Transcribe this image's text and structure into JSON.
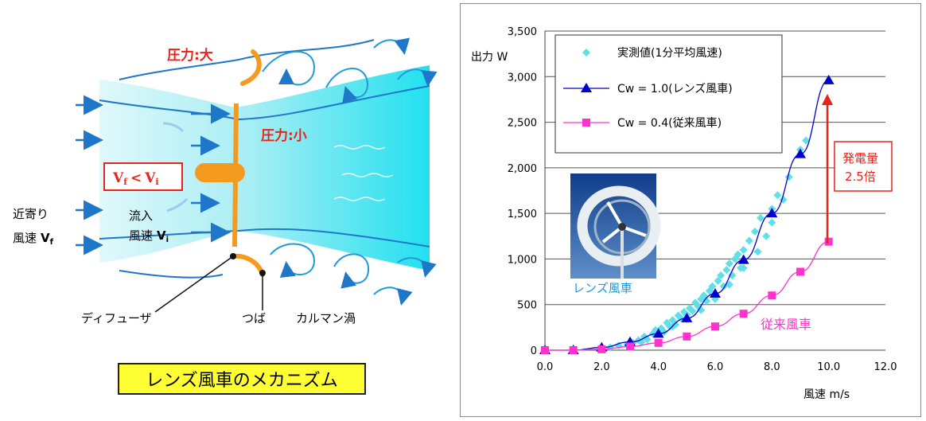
{
  "diagram": {
    "pressure_high": "圧力:大",
    "pressure_low": "圧力:小",
    "inequality_vf": "V",
    "inequality_vf_sub": "f",
    "inequality_lt": "<",
    "inequality_vi": "V",
    "inequality_vi_sub": "i",
    "approach_line1": "近寄り",
    "approach_line2": "風速",
    "approach_symbol": "V",
    "approach_sub": "f",
    "inflow_line1": "流入",
    "inflow_line2": "風速",
    "inflow_symbol": "V",
    "inflow_sub": "i",
    "diffuser_label": "ディフューザ",
    "brim_label": "つば",
    "vortex_label": "カルマン渦",
    "caption": "レンズ風車のメカニズム",
    "colors": {
      "flow_fill": "#33e5f0",
      "rotor": "#f39a1f",
      "arrow": "#1f77c9",
      "pressure_text": "#e8231a"
    }
  },
  "photo": {
    "label": "レンズ風車",
    "icon": "lens-wind-turbine-photo"
  },
  "annotations": {
    "gain_line1": "発電量",
    "gain_line2": "2.5倍",
    "conventional_label": "従来風車"
  },
  "chart_data": {
    "type": "scatter",
    "ylabel": "出力 W",
    "xlabel": "風速 m/s",
    "xlim": [
      0,
      12
    ],
    "ylim": [
      0,
      3500
    ],
    "x_ticks": [
      "0.0",
      "2.0",
      "4.0",
      "6.0",
      "8.0",
      "10.0",
      "12.0"
    ],
    "y_ticks": [
      "0",
      "500",
      "1,000",
      "1,500",
      "2,000",
      "2,500",
      "3,000",
      "3,500"
    ],
    "grid": "horizontal",
    "legend_position": "top-left",
    "series": [
      {
        "name": "実測値(1分平均風速)",
        "marker": "diamond",
        "color": "#5fe0e6",
        "points": [
          [
            2.3,
            30
          ],
          [
            2.6,
            50
          ],
          [
            2.9,
            60
          ],
          [
            3.1,
            80
          ],
          [
            3.3,
            110
          ],
          [
            3.5,
            150
          ],
          [
            3.6,
            120
          ],
          [
            3.8,
            180
          ],
          [
            3.9,
            220
          ],
          [
            4.1,
            240
          ],
          [
            4.2,
            200
          ],
          [
            4.3,
            300
          ],
          [
            4.4,
            260
          ],
          [
            4.5,
            330
          ],
          [
            4.6,
            280
          ],
          [
            4.7,
            380
          ],
          [
            4.8,
            350
          ],
          [
            4.9,
            420
          ],
          [
            5.0,
            390
          ],
          [
            5.1,
            460
          ],
          [
            5.2,
            430
          ],
          [
            5.3,
            520
          ],
          [
            5.4,
            480
          ],
          [
            5.5,
            560
          ],
          [
            5.6,
            600
          ],
          [
            5.7,
            540
          ],
          [
            5.8,
            650
          ],
          [
            5.9,
            700
          ],
          [
            6.0,
            620
          ],
          [
            6.1,
            760
          ],
          [
            6.2,
            820
          ],
          [
            6.3,
            700
          ],
          [
            6.4,
            880
          ],
          [
            6.5,
            950
          ],
          [
            6.6,
            820
          ],
          [
            6.7,
            1000
          ],
          [
            6.8,
            1050
          ],
          [
            6.9,
            900
          ],
          [
            7.0,
            1100
          ],
          [
            7.2,
            1200
          ],
          [
            7.4,
            1300
          ],
          [
            7.6,
            1450
          ],
          [
            7.8,
            1250
          ],
          [
            8.0,
            1550
          ],
          [
            8.2,
            1700
          ],
          [
            8.4,
            1650
          ],
          [
            8.6,
            1900
          ],
          [
            9.0,
            2200
          ],
          [
            9.2,
            2300
          ],
          [
            4.0,
            180
          ],
          [
            4.5,
            260
          ],
          [
            5.0,
            340
          ],
          [
            5.5,
            440
          ],
          [
            6.0,
            560
          ],
          [
            6.5,
            720
          ],
          [
            7.0,
            900
          ],
          [
            7.5,
            1080
          ],
          [
            8.0,
            1400
          ],
          [
            3.0,
            70
          ],
          [
            3.4,
            90
          ]
        ]
      },
      {
        "name": "Cw = 1.0(レンズ風車)",
        "marker": "triangle",
        "color": "#0000cc",
        "x": [
          0,
          1,
          2,
          3,
          4,
          5,
          6,
          7,
          8,
          9,
          10
        ],
        "values": [
          0,
          0,
          30,
          90,
          180,
          350,
          620,
          990,
          1500,
          2150,
          2960
        ]
      },
      {
        "name": "Cw = 0.4(従来風車)",
        "marker": "square",
        "color": "#ff33cc",
        "x": [
          0,
          1,
          2,
          3,
          4,
          5,
          6,
          7,
          8,
          9,
          10
        ],
        "values": [
          0,
          0,
          10,
          40,
          80,
          150,
          260,
          400,
          600,
          860,
          1190
        ]
      }
    ]
  }
}
